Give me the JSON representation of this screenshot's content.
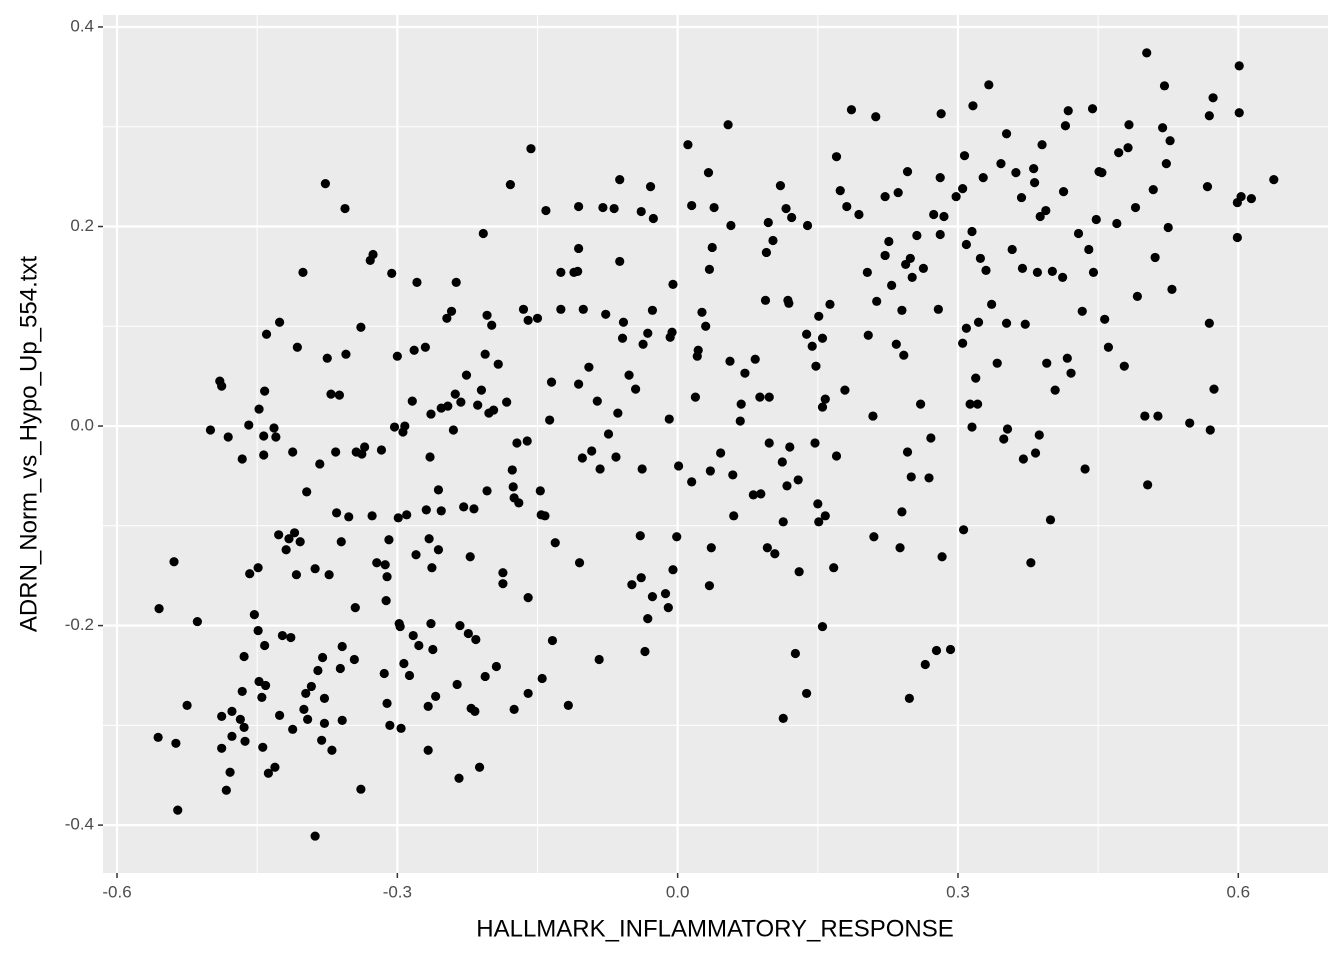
{
  "chart_data": {
    "type": "scatter",
    "x_label": "HALLMARK_INFLAMMATORY_RESPONSE",
    "y_label": "ADRN_Norm_vs_Hypo_Up_554.txt",
    "xlim": [
      -0.615,
      0.696
    ],
    "ylim": [
      -0.448,
      0.412
    ],
    "xticks": [
      -0.6,
      -0.3,
      {
        "value": 0,
        "label": "0.0"
      },
      0.3,
      0.6
    ],
    "yticks": [
      -0.4,
      -0.2,
      {
        "value": 0,
        "label": "0.0"
      },
      0.2,
      0.4
    ],
    "grid": true,
    "color": "#000000",
    "x": [
      -0.555,
      -0.539,
      -0.556,
      -0.537,
      -0.535,
      -0.525,
      -0.514,
      -0.5,
      -0.49,
      -0.488,
      -0.488,
      -0.488,
      -0.483,
      -0.479,
      -0.481,
      -0.477,
      -0.477,
      -0.468,
      -0.466,
      -0.466,
      -0.464,
      -0.464,
      -0.463,
      -0.459,
      -0.458,
      -0.453,
      -0.449,
      -0.449,
      -0.448,
      -0.448,
      -0.445,
      -0.444,
      -0.443,
      -0.443,
      -0.442,
      -0.441,
      -0.44,
      -0.438,
      -0.442,
      -0.432,
      -0.431,
      -0.43,
      -0.427,
      -0.426,
      -0.423,
      -0.426,
      -0.419,
      -0.416,
      -0.412,
      -0.414,
      -0.412,
      -0.41,
      -0.408,
      -0.407,
      -0.404,
      -0.401,
      -0.4,
      -0.398,
      -0.397,
      -0.396,
      -0.392,
      -0.388,
      -0.388,
      -0.385,
      -0.383,
      -0.381,
      -0.38,
      -0.378,
      -0.378,
      -0.377,
      -0.375,
      -0.373,
      -0.371,
      -0.37,
      -0.366,
      -0.365,
      -0.362,
      -0.361,
      -0.36,
      -0.359,
      -0.359,
      -0.356,
      -0.355,
      -0.352,
      -0.346,
      -0.345,
      -0.344,
      -0.339,
      -0.339,
      -0.338,
      -0.335,
      -0.329,
      -0.326,
      -0.327,
      -0.322,
      -0.317,
      -0.314,
      -0.313,
      -0.312,
      -0.311,
      -0.311,
      -0.309,
      -0.308,
      -0.306,
      -0.303,
      -0.3,
      -0.299,
      -0.298,
      -0.297,
      -0.296,
      -0.294,
      -0.293,
      -0.292,
      -0.29,
      -0.287,
      -0.284,
      -0.283,
      -0.282,
      -0.28,
      -0.279,
      -0.277,
      -0.27,
      -0.269,
      -0.267,
      -0.267,
      -0.266,
      -0.265,
      -0.264,
      -0.264,
      -0.263,
      -0.262,
      -0.259,
      -0.256,
      -0.256,
      -0.253,
      -0.253,
      -0.247,
      -0.246,
      -0.242,
      -0.24,
      -0.238,
      -0.237,
      -0.236,
      -0.234,
      -0.233,
      -0.232,
      -0.229,
      -0.226,
      -0.224,
      -0.222,
      -0.221,
      -0.218,
      -0.217,
      -0.216,
      -0.214,
      -0.212,
      -0.21,
      -0.208,
      -0.206,
      -0.206,
      -0.204,
      -0.204,
      -0.202,
      -0.199,
      -0.197,
      -0.194,
      -0.192,
      -0.187,
      -0.187,
      -0.183,
      -0.179,
      -0.177,
      -0.176,
      -0.175,
      -0.175,
      -0.172,
      -0.17,
      -0.165,
      -0.161,
      -0.16,
      -0.16,
      -0.16,
      -0.157,
      -0.15,
      -0.147,
      -0.146,
      -0.145,
      -0.142,
      -0.141,
      -0.137,
      -0.135,
      -0.134,
      -0.131,
      -0.125,
      -0.125,
      -0.117,
      -0.111,
      -0.106,
      -0.106,
      -0.107,
      -0.106,
      -0.105,
      -0.102,
      -0.101,
      -0.095,
      -0.092,
      -0.086,
      -0.084,
      -0.083,
      -0.08,
      -0.077,
      -0.074,
      -0.068,
      -0.066,
      -0.064,
      -0.062,
      -0.062,
      -0.059,
      -0.058,
      -0.052,
      -0.049,
      -0.045,
      -0.04,
      -0.039,
      -0.039,
      -0.038,
      -0.037,
      -0.035,
      -0.032,
      -0.032,
      -0.029,
      -0.027,
      -0.027,
      -0.026,
      -0.013,
      -0.01,
      -0.009,
      -0.008,
      -0.006,
      -0.005,
      -0.005,
      -0.001,
      0.001,
      0.011,
      0.015,
      0.015,
      0.019,
      0.021,
      0.022,
      0.026,
      0.03,
      0.033,
      0.034,
      0.034,
      0.035,
      0.036,
      0.037,
      0.039,
      0.046,
      0.054,
      0.056,
      0.057,
      0.059,
      0.06,
      0.067,
      0.068,
      0.072,
      0.081,
      0.083,
      0.088,
      0.089,
      0.094,
      0.095,
      0.096,
      0.097,
      0.098,
      0.098,
      0.102,
      0.104,
      0.11,
      0.112,
      0.113,
      0.113,
      0.116,
      0.117,
      0.118,
      0.119,
      0.12,
      0.122,
      0.126,
      0.129,
      0.13,
      0.138,
      0.138,
      0.139,
      0.144,
      0.147,
      0.148,
      0.15,
      0.151,
      0.151,
      0.155,
      0.155,
      0.155,
      0.158,
      0.158,
      0.163,
      0.167,
      0.17,
      0.17,
      0.174,
      0.179,
      0.181,
      0.186,
      0.194,
      0.203,
      0.204,
      0.209,
      0.21,
      0.212,
      0.213,
      0.222,
      0.222,
      0.226,
      0.229,
      0.234,
      0.236,
      0.238,
      0.24,
      0.24,
      0.242,
      0.244,
      0.246,
      0.246,
      0.248,
      0.249,
      0.25,
      0.251,
      0.256,
      0.26,
      0.263,
      0.265,
      0.269,
      0.271,
      0.274,
      0.277,
      0.279,
      0.281,
      0.281,
      0.282,
      0.283,
      0.285,
      0.292,
      0.298,
      0.305,
      0.305,
      0.306,
      0.307,
      0.309,
      0.309,
      0.313,
      0.315,
      0.315,
      0.316,
      0.319,
      0.321,
      0.322,
      0.324,
      0.327,
      0.33,
      0.333,
      0.336,
      0.342,
      0.346,
      0.349,
      0.352,
      0.352,
      0.353,
      0.358,
      0.362,
      0.368,
      0.369,
      0.37,
      0.372,
      0.378,
      0.381,
      0.382,
      0.383,
      0.385,
      0.387,
      0.388,
      0.39,
      0.394,
      0.395,
      0.399,
      0.401,
      0.404,
      0.412,
      0.413,
      0.415,
      0.417,
      0.418,
      0.421,
      0.429,
      0.433,
      0.436,
      0.44,
      0.444,
      0.445,
      0.448,
      0.451,
      0.454,
      0.457,
      0.461,
      0.47,
      0.472,
      0.478,
      0.482,
      0.483,
      0.49,
      0.492,
      0.5,
      0.502,
      0.503,
      0.509,
      0.511,
      0.514,
      0.519,
      0.521,
      0.523,
      0.525,
      0.527,
      0.529,
      0.548,
      0.567,
      0.569,
      0.569,
      0.57,
      0.573,
      0.574,
      0.601,
      0.599,
      0.599,
      0.601,
      0.603,
      0.614,
      0.638
    ],
    "values": [
      -0.183,
      -0.136,
      -0.312,
      -0.318,
      -0.385,
      -0.28,
      -0.196,
      -0.004,
      0.045,
      0.04,
      -0.291,
      -0.323,
      -0.365,
      -0.347,
      -0.011,
      -0.286,
      -0.311,
      -0.294,
      -0.266,
      -0.033,
      -0.231,
      -0.302,
      -0.316,
      0.001,
      -0.148,
      -0.189,
      -0.142,
      -0.205,
      0.017,
      -0.256,
      -0.272,
      -0.322,
      -0.01,
      -0.029,
      0.035,
      -0.26,
      0.092,
      -0.348,
      -0.22,
      -0.002,
      -0.342,
      -0.011,
      -0.109,
      0.104,
      -0.21,
      -0.29,
      -0.124,
      -0.113,
      -0.026,
      -0.212,
      -0.304,
      -0.107,
      -0.149,
      0.079,
      -0.116,
      0.154,
      -0.284,
      -0.268,
      -0.066,
      -0.294,
      -0.261,
      -0.143,
      -0.411,
      -0.245,
      -0.038,
      -0.315,
      -0.232,
      -0.273,
      -0.298,
      0.243,
      0.068,
      -0.149,
      0.032,
      -0.325,
      -0.026,
      -0.087,
      0.031,
      -0.243,
      -0.116,
      -0.221,
      -0.295,
      0.218,
      0.072,
      -0.091,
      -0.234,
      -0.182,
      -0.026,
      0.099,
      -0.364,
      -0.028,
      -0.021,
      0.166,
      0.172,
      -0.09,
      -0.137,
      -0.024,
      -0.248,
      -0.139,
      -0.175,
      -0.278,
      -0.151,
      -0.114,
      -0.3,
      0.153,
      -0.001,
      0.07,
      -0.092,
      -0.198,
      -0.201,
      -0.303,
      -0.006,
      -0.238,
      0.0,
      -0.089,
      -0.25,
      0.025,
      -0.21,
      0.076,
      -0.129,
      0.144,
      -0.22,
      0.079,
      -0.084,
      -0.325,
      -0.281,
      -0.113,
      -0.031,
      -0.198,
      0.012,
      -0.142,
      -0.224,
      -0.271,
      -0.124,
      -0.064,
      0.018,
      -0.085,
      0.108,
      0.02,
      0.115,
      -0.004,
      0.032,
      0.144,
      -0.259,
      -0.353,
      -0.2,
      0.024,
      -0.081,
      0.051,
      -0.208,
      -0.131,
      -0.283,
      -0.083,
      -0.286,
      -0.214,
      0.021,
      -0.342,
      0.036,
      0.193,
      -0.251,
      0.072,
      0.111,
      -0.065,
      0.013,
      0.101,
      0.016,
      -0.241,
      0.062,
      -0.147,
      -0.158,
      0.024,
      0.242,
      -0.044,
      -0.061,
      -0.284,
      -0.072,
      -0.017,
      -0.077,
      0.117,
      -0.015,
      -0.172,
      -0.268,
      0.106,
      0.278,
      0.108,
      -0.065,
      -0.089,
      -0.253,
      -0.09,
      0.216,
      0.006,
      0.044,
      -0.215,
      -0.117,
      0.154,
      0.117,
      -0.28,
      0.154,
      0.22,
      0.178,
      0.155,
      0.042,
      -0.137,
      -0.032,
      0.117,
      0.059,
      -0.025,
      0.025,
      -0.234,
      -0.043,
      0.219,
      0.112,
      -0.008,
      0.218,
      -0.031,
      0.013,
      0.247,
      0.165,
      0.088,
      0.104,
      0.051,
      -0.159,
      0.037,
      -0.11,
      0.215,
      -0.152,
      -0.043,
      0.082,
      -0.226,
      -0.193,
      0.093,
      0.24,
      -0.171,
      0.116,
      0.208,
      -0.168,
      -0.182,
      0.007,
      0.089,
      0.094,
      0.142,
      -0.144,
      -0.111,
      -0.04,
      0.282,
      -0.056,
      0.221,
      0.029,
      0.07,
      0.076,
      0.114,
      0.1,
      0.254,
      0.157,
      -0.16,
      -0.045,
      -0.122,
      0.179,
      0.219,
      -0.027,
      0.302,
      0.065,
      0.201,
      -0.049,
      -0.09,
      0.005,
      0.022,
      0.053,
      -0.069,
      0.067,
      0.029,
      -0.068,
      0.126,
      0.174,
      -0.122,
      0.204,
      0.029,
      -0.017,
      0.186,
      -0.128,
      0.241,
      -0.036,
      -0.096,
      -0.293,
      0.218,
      -0.06,
      0.126,
      0.123,
      -0.021,
      0.209,
      -0.228,
      -0.054,
      -0.146,
      0.092,
      -0.268,
      0.201,
      0.08,
      -0.017,
      0.06,
      -0.078,
      0.11,
      -0.096,
      0.019,
      -0.201,
      0.088,
      -0.09,
      0.027,
      0.122,
      -0.142,
      0.27,
      -0.03,
      0.236,
      0.036,
      0.22,
      0.317,
      0.212,
      0.154,
      0.091,
      0.01,
      -0.111,
      0.31,
      0.125,
      0.171,
      0.23,
      0.185,
      0.141,
      0.082,
      0.234,
      -0.122,
      0.116,
      -0.086,
      0.071,
      0.162,
      0.255,
      -0.026,
      -0.273,
      0.168,
      -0.051,
      0.149,
      0.191,
      0.022,
      0.158,
      -0.239,
      -0.052,
      -0.012,
      0.212,
      -0.225,
      0.117,
      0.192,
      0.249,
      0.313,
      -0.131,
      0.21,
      -0.224,
      0.23,
      0.083,
      0.238,
      -0.104,
      0.271,
      0.098,
      0.182,
      0.022,
      0.195,
      -0.001,
      0.321,
      0.048,
      0.022,
      0.104,
      0.168,
      0.249,
      0.156,
      0.342,
      0.122,
      0.063,
      0.263,
      -0.013,
      0.103,
      0.293,
      -0.003,
      0.177,
      0.254,
      0.229,
      0.158,
      -0.033,
      0.102,
      -0.137,
      0.258,
      0.244,
      -0.027,
      0.154,
      -0.009,
      0.21,
      0.282,
      0.216,
      0.063,
      -0.094,
      0.155,
      0.036,
      0.149,
      0.235,
      0.301,
      0.068,
      0.316,
      0.053,
      0.193,
      0.115,
      -0.043,
      0.177,
      0.318,
      0.154,
      0.207,
      0.255,
      0.254,
      0.107,
      0.079,
      0.203,
      0.274,
      0.06,
      0.279,
      0.302,
      0.219,
      0.13,
      0.01,
      0.374,
      -0.059,
      0.237,
      0.169,
      0.01,
      0.299,
      0.341,
      0.263,
      0.199,
      0.286,
      0.137,
      0.003,
      0.24,
      0.103,
      0.311,
      -0.004,
      0.329,
      0.037,
      0.361,
      0.224,
      0.189,
      0.314,
      0.23,
      0.228,
      0.247
    ]
  }
}
